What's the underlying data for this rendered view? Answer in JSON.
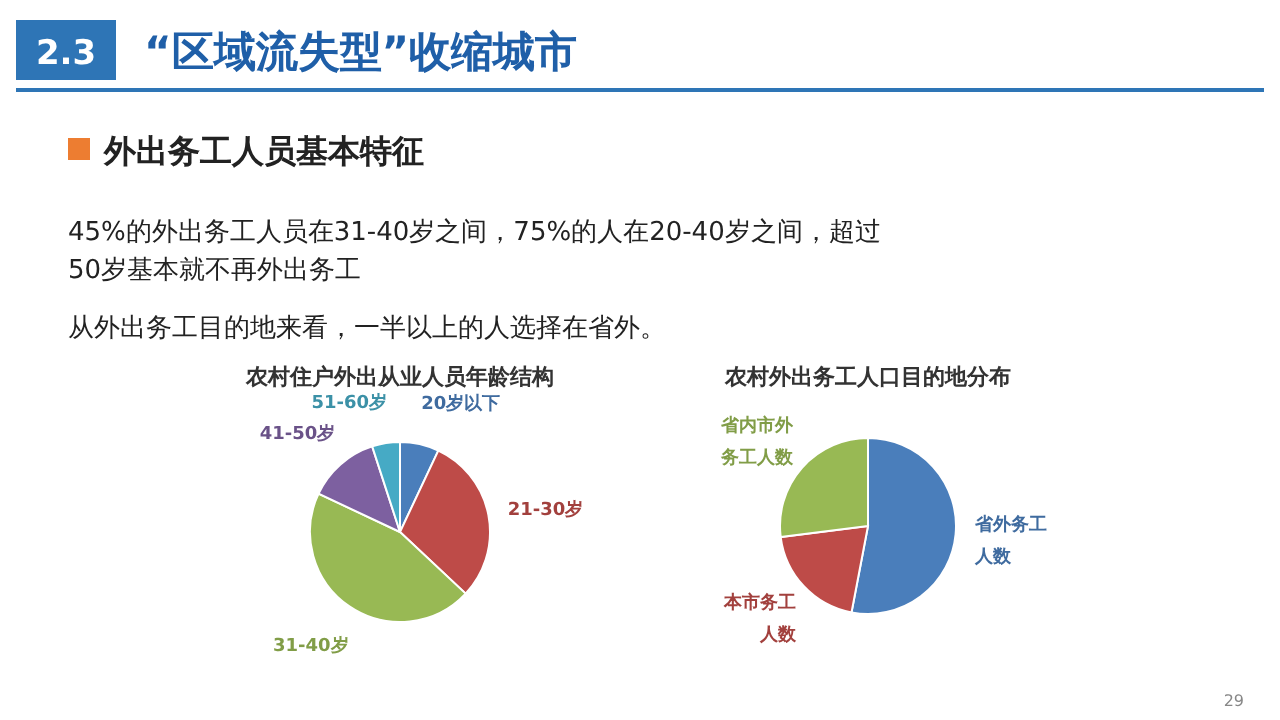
{
  "chart_data": [
    {
      "type": "other",
      "title": "“区域流失型”收缩城市",
      "subtitle": "外出务工人员基本特征",
      "annotations": [
        "2.3",
        "45%的外出务工人员在31-40岁之间，75%的人在20-40岁之间，超过50岁基本就不再外出务工",
        "从外出务工目的地来看，一半以上的人选择在省外。",
        "29"
      ]
    },
    {
      "type": "pie",
      "title": "农村住户外出从业人员年龄结构",
      "categories": [
        "20岁以下",
        "21-30岁",
        "31-40岁",
        "41-50岁",
        "51-60岁"
      ],
      "values": [
        7,
        30,
        45,
        13,
        5
      ],
      "colors": [
        "#4a7ebb",
        "#be4b48",
        "#98b954",
        "#7d60a0",
        "#46aac5"
      ]
    },
    {
      "type": "pie",
      "title": "农村外出务工人口目的地分布",
      "categories": [
        "省外务工人数",
        "本市务工人数",
        "省内市外务工人数"
      ],
      "values": [
        53,
        20,
        27
      ],
      "colors": [
        "#4a7ebb",
        "#be4b48",
        "#98b954"
      ]
    }
  ]
}
